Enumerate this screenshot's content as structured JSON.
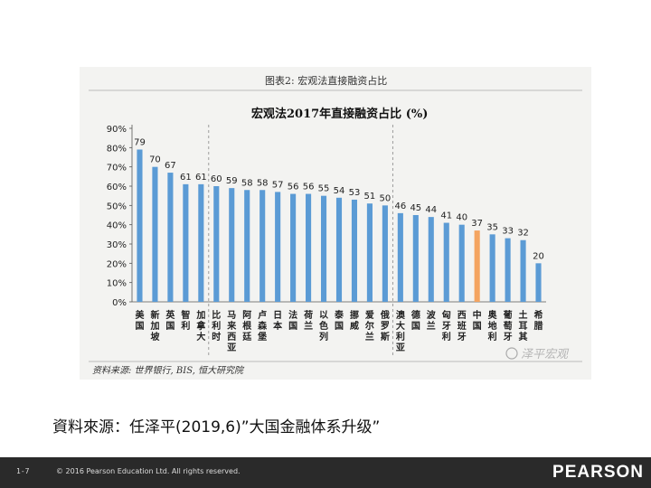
{
  "figure": {
    "header_label": "图表2: 宏观法直接融资占比",
    "source_note": "资料来源: 世界银行, BIS, 恒大研究院",
    "watermark": "泽平宏观"
  },
  "slide": {
    "source_line": "資料來源：任泽平(2019,6)”大国金融体系升级”",
    "page_number": "1-7",
    "copyright": "© 2016 Pearson Education Ltd. All rights reserved.",
    "logo": "PEARSON"
  },
  "colors": {
    "bar": "#5b9bd5",
    "highlight_bar": "#f4a460",
    "divider": "#888888"
  },
  "chart_data": {
    "type": "bar",
    "title": "宏观法2017年直接融资占比 (%)",
    "categories": [
      "美国",
      "新加坡",
      "英国",
      "智利",
      "加拿大",
      "比利时",
      "马来西亚",
      "阿根廷",
      "卢森堡",
      "日本",
      "法国",
      "荷兰",
      "以色列",
      "泰国",
      "挪威",
      "爱尔兰",
      "俄罗斯",
      "澳大利亚",
      "德国",
      "波兰",
      "匈牙利",
      "西班牙",
      "中国",
      "奥地利",
      "葡萄牙",
      "土耳其",
      "希腊"
    ],
    "values": [
      79,
      70,
      67,
      61,
      61,
      60,
      59,
      58,
      58,
      57,
      56,
      56,
      55,
      54,
      53,
      51,
      50,
      46,
      45,
      44,
      41,
      40,
      37,
      35,
      33,
      32,
      20
    ],
    "value_labels": [
      "79",
      "70",
      "67",
      "61",
      "61",
      "60",
      "59",
      "58",
      "58",
      "57",
      "56",
      "56",
      "55",
      "54",
      "53",
      "51",
      "50",
      "46",
      "45",
      "44",
      "41",
      "40",
      "37",
      "35",
      "33",
      "32",
      "20"
    ],
    "highlight_index": 22,
    "ylim": [
      0,
      90
    ],
    "y_ticks": [
      "0%",
      "10%",
      "20%",
      "30%",
      "40%",
      "50%",
      "60%",
      "70%",
      "80%",
      "90%"
    ],
    "group_dividers_after": [
      4,
      16
    ],
    "xlabel": "",
    "ylabel": "",
    "grid": false
  }
}
